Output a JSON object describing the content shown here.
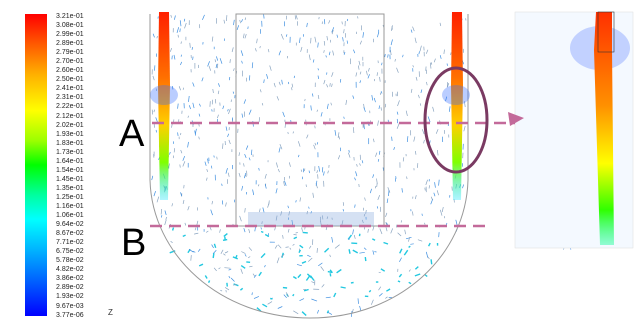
{
  "legend": {
    "ticks": [
      "3.21e-01",
      "3.08e-01",
      "2.99e-01",
      "2.89e-01",
      "2.79e-01",
      "2.70e-01",
      "2.60e-01",
      "2.50e-01",
      "2.41e-01",
      "2.31e-01",
      "2.22e-01",
      "2.12e-01",
      "2.02e-01",
      "1.93e-01",
      "1.83e-01",
      "1.73e-01",
      "1.64e-01",
      "1.54e-01",
      "1.45e-01",
      "1.35e-01",
      "1.25e-01",
      "1.16e-01",
      "1.06e-01",
      "9.64e-02",
      "8.67e-02",
      "7.71e-02",
      "6.75e-02",
      "5.78e-02",
      "4.82e-02",
      "3.86e-02",
      "2.89e-02",
      "1.93e-02",
      "9.67e-03",
      "3.77e-06"
    ],
    "colors": [
      "#ff0000",
      "#ffb000",
      "#ffff00",
      "#00ff00",
      "#00ffff",
      "#0064ff",
      "#0000ff"
    ]
  },
  "axis_label": "Z",
  "section_labels": {
    "a": "A",
    "b": "B"
  },
  "colors": {
    "dashed_line": "#c36a9a",
    "ellipse": "#7a3a62",
    "arrow": "#c36a9a",
    "vessel_outline": "#999999"
  }
}
